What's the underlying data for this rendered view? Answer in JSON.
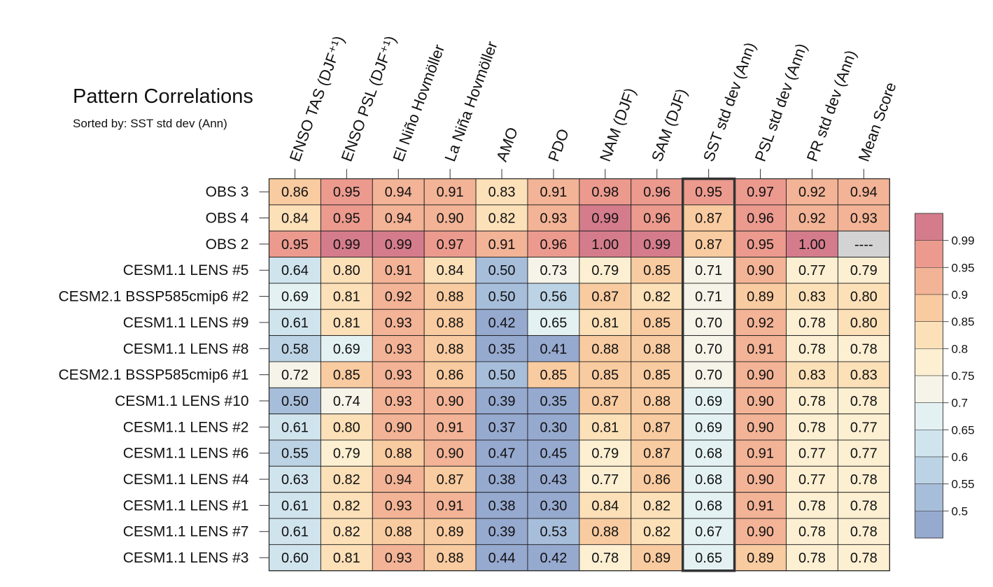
{
  "title": "Pattern Correlations",
  "subtitle": "Sorted by: SST std dev (Ann)",
  "chart_data": {
    "type": "heatmap",
    "title": "Pattern Correlations",
    "subtitle": "Sorted by: SST std dev (Ann)",
    "columns": [
      "ENSO TAS (DJF⁺¹)",
      "ENSO PSL (DJF⁺¹)",
      "El Niño Hovmöller",
      "La Niña Hovmöller",
      "AMO",
      "PDO",
      "NAM (DJF)",
      "SAM (DJF)",
      "SST std dev (Ann)",
      "PSL std dev (Ann)",
      "PR std dev (Ann)",
      "Mean Score"
    ],
    "rows": [
      "OBS 3",
      "OBS 4",
      "OBS 2",
      "CESM1.1 LENS #5",
      "CESM2.1 BSSP585cmip6 #2",
      "CESM1.1 LENS #9",
      "CESM1.1 LENS #8",
      "CESM2.1 BSSP585cmip6 #1",
      "CESM1.1 LENS #10",
      "CESM1.1 LENS #2",
      "CESM1.1 LENS #6",
      "CESM1.1 LENS #4",
      "CESM1.1 LENS #1",
      "CESM1.1 LENS #7",
      "CESM1.1 LENS #3"
    ],
    "values": [
      [
        "0.86",
        "0.95",
        "0.94",
        "0.91",
        "0.83",
        "0.91",
        "0.98",
        "0.96",
        "0.95",
        "0.97",
        "0.92",
        "0.94"
      ],
      [
        "0.84",
        "0.95",
        "0.94",
        "0.90",
        "0.82",
        "0.93",
        "0.99",
        "0.96",
        "0.87",
        "0.96",
        "0.92",
        "0.93"
      ],
      [
        "0.95",
        "0.99",
        "0.99",
        "0.97",
        "0.91",
        "0.96",
        "1.00",
        "0.99",
        "0.87",
        "0.95",
        "1.00",
        "----"
      ],
      [
        "0.64",
        "0.80",
        "0.91",
        "0.84",
        "0.50",
        "0.73",
        "0.79",
        "0.85",
        "0.71",
        "0.90",
        "0.77",
        "0.79"
      ],
      [
        "0.69",
        "0.81",
        "0.92",
        "0.88",
        "0.50",
        "0.56",
        "0.87",
        "0.82",
        "0.71",
        "0.89",
        "0.83",
        "0.80"
      ],
      [
        "0.61",
        "0.81",
        "0.93",
        "0.88",
        "0.42",
        "0.65",
        "0.81",
        "0.85",
        "0.70",
        "0.92",
        "0.78",
        "0.80"
      ],
      [
        "0.58",
        "0.69",
        "0.93",
        "0.88",
        "0.35",
        "0.41",
        "0.88",
        "0.88",
        "0.70",
        "0.91",
        "0.78",
        "0.78"
      ],
      [
        "0.72",
        "0.85",
        "0.93",
        "0.86",
        "0.50",
        "0.85",
        "0.85",
        "0.85",
        "0.70",
        "0.90",
        "0.83",
        "0.83"
      ],
      [
        "0.50",
        "0.74",
        "0.93",
        "0.90",
        "0.39",
        "0.35",
        "0.87",
        "0.88",
        "0.69",
        "0.90",
        "0.78",
        "0.78"
      ],
      [
        "0.61",
        "0.80",
        "0.90",
        "0.91",
        "0.37",
        "0.30",
        "0.81",
        "0.87",
        "0.69",
        "0.90",
        "0.78",
        "0.77"
      ],
      [
        "0.55",
        "0.79",
        "0.88",
        "0.90",
        "0.47",
        "0.45",
        "0.79",
        "0.87",
        "0.68",
        "0.91",
        "0.77",
        "0.77"
      ],
      [
        "0.63",
        "0.82",
        "0.94",
        "0.87",
        "0.38",
        "0.43",
        "0.77",
        "0.86",
        "0.68",
        "0.90",
        "0.77",
        "0.78"
      ],
      [
        "0.61",
        "0.82",
        "0.93",
        "0.91",
        "0.38",
        "0.30",
        "0.84",
        "0.82",
        "0.68",
        "0.91",
        "0.78",
        "0.78"
      ],
      [
        "0.61",
        "0.82",
        "0.88",
        "0.89",
        "0.39",
        "0.53",
        "0.88",
        "0.82",
        "0.67",
        "0.90",
        "0.78",
        "0.78"
      ],
      [
        "0.60",
        "0.81",
        "0.93",
        "0.88",
        "0.44",
        "0.42",
        "0.78",
        "0.89",
        "0.65",
        "0.89",
        "0.78",
        "0.78"
      ]
    ],
    "highlight_column": "SST std dev (Ann)",
    "colorbar": {
      "labels": [
        "0.99",
        "0.95",
        "0.9",
        "0.85",
        "0.8",
        "0.75",
        "0.7",
        "0.65",
        "0.6",
        "0.55",
        "0.5"
      ],
      "thresholds": [
        0.5,
        0.55,
        0.6,
        0.65,
        0.7,
        0.75,
        0.8,
        0.85,
        0.9,
        0.95,
        0.99
      ],
      "colors": [
        "#96a9cf",
        "#a7bedb",
        "#bcd3e5",
        "#d0e4ee",
        "#e4f1f3",
        "#f6f4e8",
        "#fdefd2",
        "#fce0b8",
        "#f9cba0",
        "#f3b396",
        "#ec9a8e",
        "#d57c8c"
      ],
      "missing_color": "#d3d3d3"
    }
  }
}
